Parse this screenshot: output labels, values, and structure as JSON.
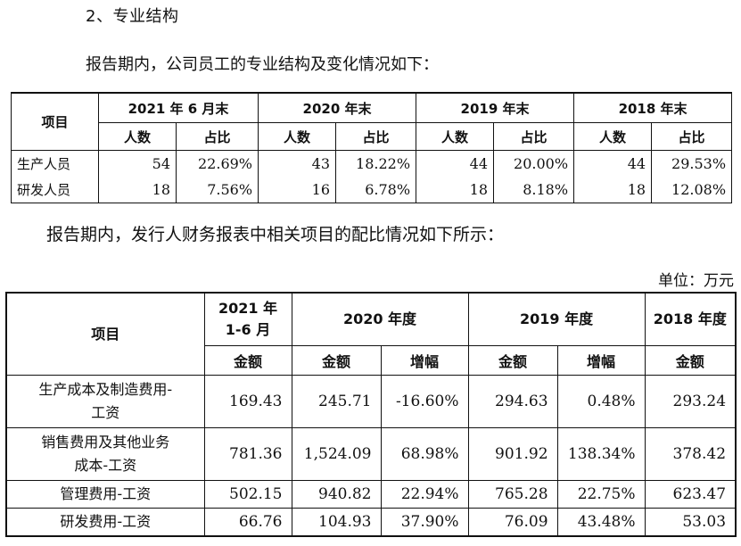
{
  "section_title": "2、专业结构",
  "intro_staff": "报告期内，公司员工的专业结构及变化情况如下：",
  "intro_ratio": "报告期内，发行人财务报表中相关项目的配比情况如下所示：",
  "unit_label": "单位：万元",
  "staff_table": {
    "item_header": "项目",
    "periods": [
      "2021 年 6 月末",
      "2020 年末",
      "2019 年末",
      "2018 年末"
    ],
    "sub_headers": [
      "人数",
      "占比"
    ],
    "rows": [
      {
        "label": "生产人员",
        "values": [
          "54",
          "22.69%",
          "43",
          "18.22%",
          "44",
          "20.00%",
          "44",
          "29.53%"
        ]
      },
      {
        "label": "研发人员",
        "values": [
          "18",
          "7.56%",
          "16",
          "6.78%",
          "18",
          "8.18%",
          "18",
          "12.08%"
        ]
      }
    ]
  },
  "cost_table": {
    "item_header": "项目",
    "period_2021": "2021 年 1-6 月",
    "period_2021_line1": "2021 年",
    "period_2021_line2": "1-6 月",
    "period_2020": "2020 年度",
    "period_2019": "2019 年度",
    "period_2018": "2018 年度",
    "amount_label": "金额",
    "growth_label": "增幅",
    "rows": [
      {
        "label_line1": "生产成本及制造费用-",
        "label_line2": "工资",
        "values": [
          "169.43",
          "245.71",
          "-16.60%",
          "294.63",
          "0.48%",
          "293.24"
        ]
      },
      {
        "label_line1": "销售费用及其他业务",
        "label_line2": "成本-工资",
        "values": [
          "781.36",
          "1,524.09",
          "68.98%",
          "901.92",
          "138.34%",
          "378.42"
        ]
      },
      {
        "label_line1": "管理费用-工资",
        "label_line2": "",
        "values": [
          "502.15",
          "940.82",
          "22.94%",
          "765.28",
          "22.75%",
          "623.47"
        ]
      },
      {
        "label_line1": "研发费用-工资",
        "label_line2": "",
        "values": [
          "66.76",
          "104.93",
          "37.90%",
          "76.09",
          "43.48%",
          "53.03"
        ]
      }
    ]
  }
}
